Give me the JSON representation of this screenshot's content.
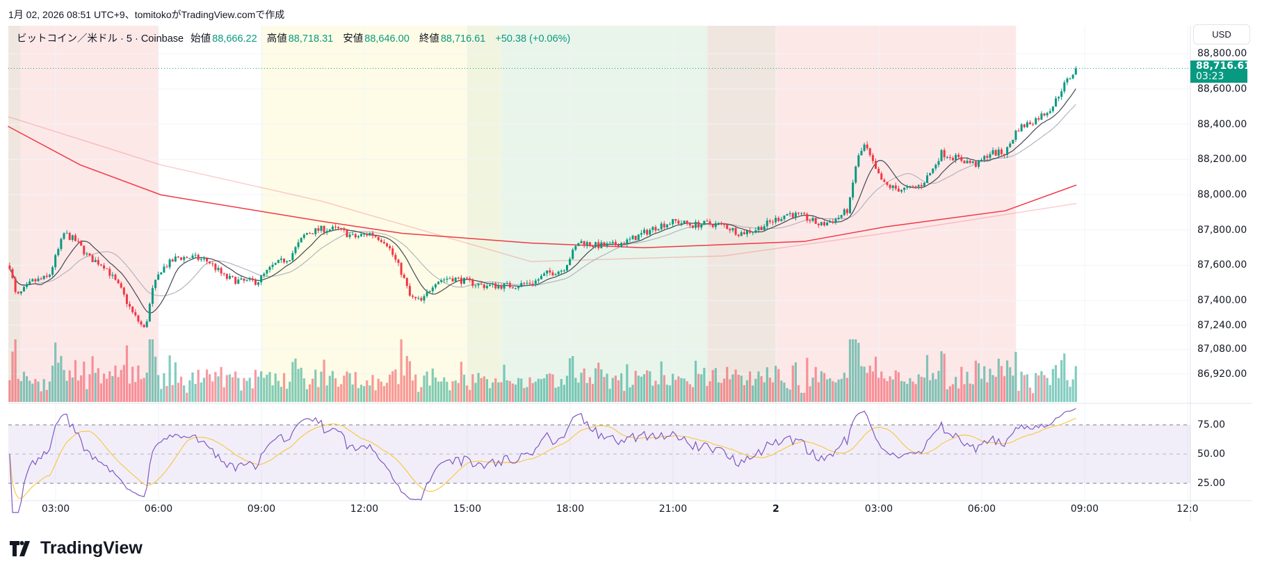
{
  "attribution": "1月 02, 2026 08:51 UTC+9、tomitokoがTradingView.comで作成",
  "legend": {
    "symbol": "ビットコイン／米ドル · 5 · Coinbase",
    "open_label": "始値",
    "open": "88,666.22",
    "high_label": "高値",
    "high": "88,718.31",
    "low_label": "安値",
    "low": "88,646.00",
    "close_label": "終値",
    "close": "88,716.61",
    "change": "+50.38 (+0.06%)"
  },
  "currency_button": "USD",
  "last_price": {
    "value": "88,716.61",
    "countdown": "03:23"
  },
  "logo": "TradingView",
  "colors": {
    "up": "#089981",
    "down": "#f23645",
    "rsi": "#7e57c2",
    "rsi_ma": "#f7c948",
    "ma_long": "#f23645"
  },
  "chart_data": {
    "type": "candlestick",
    "timeframe": "5",
    "price_ticks": [
      "88,800.00",
      "88,600.00",
      "88,400.00",
      "88,200.00",
      "88,000.00",
      "87,800.00",
      "87,600.00",
      "87,400.00",
      "87,240.00",
      "87,080.00",
      "86,920.00"
    ],
    "price_tick_values": [
      88800,
      88600,
      88400,
      88200,
      88000,
      87800,
      87600,
      87400,
      87240,
      87080,
      86920
    ],
    "rsi_ticks": [
      "75.00",
      "50.00",
      "25.00"
    ],
    "rsi_tick_values": [
      75,
      50,
      25
    ],
    "time_ticks": [
      {
        "label": "03:00",
        "hour": 3
      },
      {
        "label": "06:00",
        "hour": 6
      },
      {
        "label": "09:00",
        "hour": 9
      },
      {
        "label": "12:00",
        "hour": 12
      },
      {
        "label": "15:00",
        "hour": 15
      },
      {
        "label": "18:00",
        "hour": 18
      },
      {
        "label": "21:00",
        "hour": 21
      },
      {
        "label": "2",
        "hour": 24
      },
      {
        "label": "03:00",
        "hour": 27
      },
      {
        "label": "06:00",
        "hour": 30
      },
      {
        "label": "09:00",
        "hour": 33
      },
      {
        "label": "12:0",
        "hour": 36
      }
    ],
    "hour_range": [
      1.62,
      36.6
    ],
    "close_path_hours_price": [
      [
        1.66,
        87598
      ],
      [
        1.85,
        87416
      ],
      [
        2.32,
        87507
      ],
      [
        2.79,
        87530
      ],
      [
        3.25,
        87781
      ],
      [
        3.61,
        87735
      ],
      [
        3.96,
        87644
      ],
      [
        4.43,
        87598
      ],
      [
        4.9,
        87461
      ],
      [
        5.25,
        87325
      ],
      [
        5.6,
        87233
      ],
      [
        5.83,
        87461
      ],
      [
        6.07,
        87575
      ],
      [
        6.54,
        87644
      ],
      [
        7.01,
        87644
      ],
      [
        7.47,
        87621
      ],
      [
        7.94,
        87530
      ],
      [
        8.41,
        87507
      ],
      [
        8.88,
        87507
      ],
      [
        9.35,
        87598
      ],
      [
        9.82,
        87644
      ],
      [
        10.29,
        87781
      ],
      [
        10.76,
        87804
      ],
      [
        11.23,
        87804
      ],
      [
        11.7,
        87758
      ],
      [
        12.17,
        87781
      ],
      [
        12.63,
        87735
      ],
      [
        13.1,
        87553
      ],
      [
        13.34,
        87416
      ],
      [
        13.69,
        87393
      ],
      [
        14.04,
        87507
      ],
      [
        14.51,
        87530
      ],
      [
        14.98,
        87507
      ],
      [
        15.45,
        87484
      ],
      [
        15.92,
        87484
      ],
      [
        16.39,
        87484
      ],
      [
        16.97,
        87507
      ],
      [
        17.32,
        87553
      ],
      [
        17.79,
        87575
      ],
      [
        18.26,
        87735
      ],
      [
        18.73,
        87712
      ],
      [
        19.2,
        87712
      ],
      [
        19.67,
        87735
      ],
      [
        20.14,
        87781
      ],
      [
        20.61,
        87827
      ],
      [
        21.08,
        87849
      ],
      [
        21.55,
        87827
      ],
      [
        22.01,
        87836
      ],
      [
        22.48,
        87827
      ],
      [
        22.95,
        87781
      ],
      [
        23.42,
        87804
      ],
      [
        23.89,
        87849
      ],
      [
        24.36,
        87895
      ],
      [
        24.83,
        87872
      ],
      [
        25.3,
        87827
      ],
      [
        25.77,
        87863
      ],
      [
        26.12,
        87918
      ],
      [
        26.35,
        88191
      ],
      [
        26.59,
        88283
      ],
      [
        26.94,
        88123
      ],
      [
        27.17,
        88055
      ],
      [
        27.53,
        88032
      ],
      [
        27.88,
        88032
      ],
      [
        28.23,
        88055
      ],
      [
        28.58,
        88146
      ],
      [
        28.81,
        88237
      ],
      [
        29.17,
        88214
      ],
      [
        29.52,
        88191
      ],
      [
        29.87,
        88169
      ],
      [
        30.22,
        88237
      ],
      [
        30.69,
        88237
      ],
      [
        31.04,
        88374
      ],
      [
        31.51,
        88420
      ],
      [
        31.86,
        88466
      ],
      [
        32.1,
        88511
      ],
      [
        32.33,
        88602
      ],
      [
        32.76,
        88716.61
      ]
    ],
    "ma_long": [
      [
        1.61,
        88388
      ],
      [
        3.72,
        88169
      ],
      [
        6.07,
        87999
      ],
      [
        10.76,
        87849
      ],
      [
        13.1,
        87781
      ],
      [
        16.85,
        87726
      ],
      [
        20.14,
        87699
      ],
      [
        24.83,
        87735
      ],
      [
        27.17,
        87817
      ],
      [
        30.69,
        87909
      ],
      [
        32.76,
        88055
      ]
    ],
    "ma_long_faint": [
      [
        1.61,
        88443
      ],
      [
        6.07,
        88169
      ],
      [
        10.76,
        87963
      ],
      [
        16.85,
        87621
      ],
      [
        22.48,
        87653
      ],
      [
        27.17,
        87781
      ],
      [
        32.76,
        87950
      ]
    ],
    "sessions": [
      {
        "from": 1.62,
        "to": 1.98,
        "color": "#efe7df"
      },
      {
        "from": 1.98,
        "to": 6.0,
        "color": "#fde8e8"
      },
      {
        "from": 9.0,
        "to": 15.0,
        "color": "#fefce6"
      },
      {
        "from": 15.0,
        "to": 16.0,
        "color": "#f1f5e0"
      },
      {
        "from": 16.0,
        "to": 22.0,
        "color": "#e9f5ea"
      },
      {
        "from": 22.0,
        "to": 24.0,
        "color": "#efe7df"
      },
      {
        "from": 24.0,
        "to": 31.0,
        "color": "#fde8e8"
      }
    ]
  }
}
